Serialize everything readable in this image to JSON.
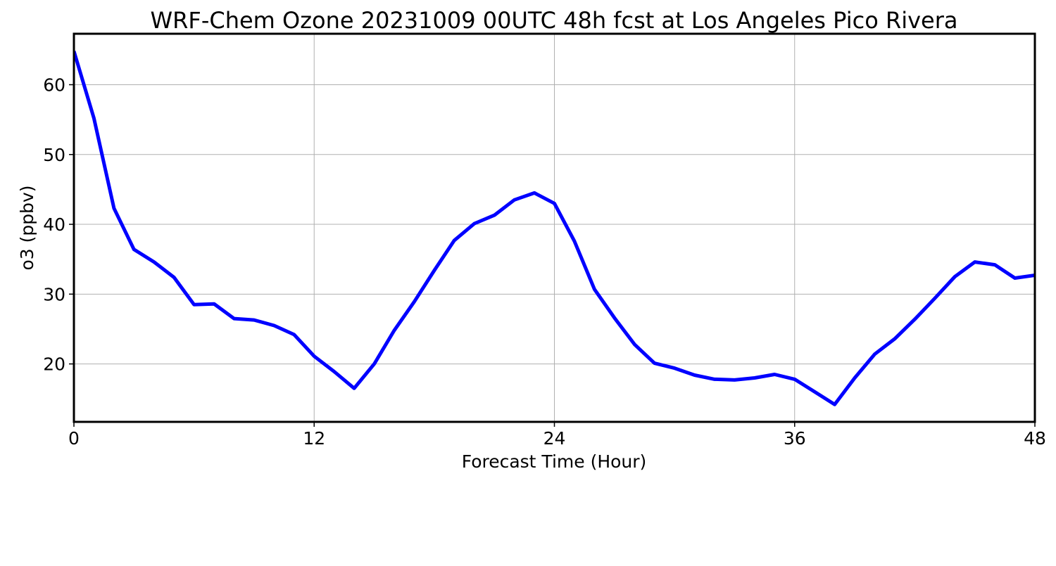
{
  "chart_data": {
    "type": "line",
    "title": "WRF-Chem Ozone  20231009 00UTC 48h fcst at Los Angeles Pico Rivera",
    "xlabel": "Forecast Time (Hour)",
    "ylabel": "o3  (ppbv)",
    "xlim": [
      0,
      48
    ],
    "ylim": [
      11.7,
      67.3
    ],
    "xticks": [
      0,
      12,
      24,
      36,
      48
    ],
    "yticks": [
      20,
      30,
      40,
      50,
      60
    ],
    "grid": true,
    "line_color": "#0000ff",
    "x": [
      0,
      1,
      2,
      3,
      4,
      5,
      6,
      7,
      8,
      9,
      10,
      11,
      12,
      13,
      14,
      15,
      16,
      17,
      18,
      19,
      20,
      21,
      22,
      23,
      24,
      25,
      26,
      27,
      28,
      29,
      30,
      31,
      32,
      33,
      34,
      35,
      36,
      37,
      38,
      39,
      40,
      41,
      42,
      43,
      44,
      45,
      46,
      47,
      48
    ],
    "series": [
      {
        "values": [
          64.8,
          55.2,
          42.3,
          36.4,
          34.6,
          32.4,
          28.5,
          28.6,
          26.5,
          26.3,
          25.5,
          24.2,
          21.1,
          18.9,
          16.5,
          20.0,
          24.8,
          28.9,
          33.4,
          37.7,
          40.1,
          41.3,
          43.5,
          44.5,
          43.0,
          37.6,
          30.7,
          26.6,
          22.8,
          20.1,
          19.4,
          18.4,
          17.8,
          17.7,
          18.0,
          18.5,
          17.8,
          16.0,
          14.2,
          18.0,
          21.4,
          23.6,
          26.4,
          29.4,
          32.5,
          34.6,
          34.2,
          32.3,
          32.7
        ]
      }
    ]
  }
}
